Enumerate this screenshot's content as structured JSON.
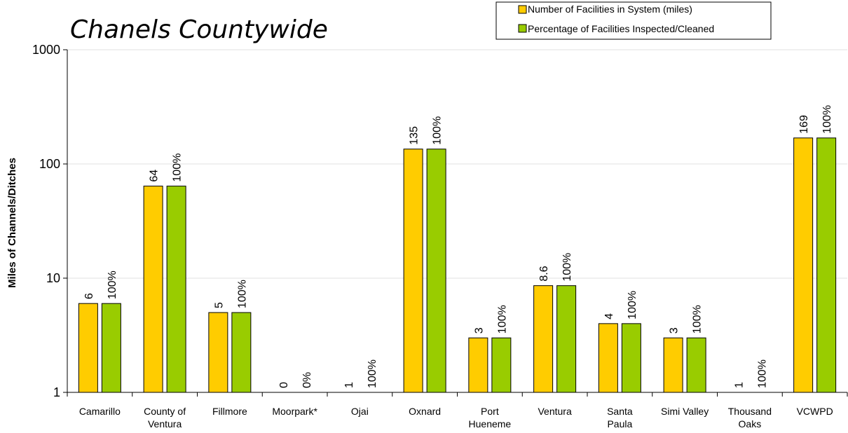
{
  "chart_data": {
    "type": "bar",
    "title": "Chanels Countywide",
    "ylabel": "Miles of Channels/Ditches",
    "xlabel": "",
    "yscale": "log",
    "ylim": [
      1,
      1000
    ],
    "yticks": [
      "1",
      "10",
      "100",
      "1000"
    ],
    "legend_position": "top-right",
    "colors": {
      "series1": "#FFCC00",
      "series2": "#99CC00"
    },
    "categories": [
      [
        "Camarillo"
      ],
      [
        "County of",
        "Ventura"
      ],
      [
        "Fillmore"
      ],
      [
        "Moorpark*"
      ],
      [
        "Ojai"
      ],
      [
        "Oxnard"
      ],
      [
        "Port",
        "Hueneme"
      ],
      [
        "Ventura"
      ],
      [
        "Santa",
        "Paula"
      ],
      [
        "Simi Valley"
      ],
      [
        "Thousand",
        "Oaks"
      ],
      [
        "VCWPD"
      ]
    ],
    "series": [
      {
        "name": "Number of Facilities in System (miles)",
        "values": [
          6,
          64,
          5,
          0,
          1,
          135,
          3,
          8.6,
          4,
          3,
          1,
          169
        ],
        "labels": [
          "6",
          "64",
          "5",
          "0",
          "1",
          "135",
          "3",
          "8.6",
          "4",
          "3",
          "1",
          "169"
        ]
      },
      {
        "name": "Percentage of Facilities Inspected/Cleaned",
        "values": [
          6,
          64,
          5,
          0,
          1,
          135,
          3,
          8.6,
          4,
          3,
          1,
          169
        ],
        "labels": [
          "100%",
          "100%",
          "100%",
          "0%",
          "100%",
          "100%",
          "100%",
          "100%",
          "100%",
          "100%",
          "100%",
          "100%"
        ]
      }
    ]
  }
}
